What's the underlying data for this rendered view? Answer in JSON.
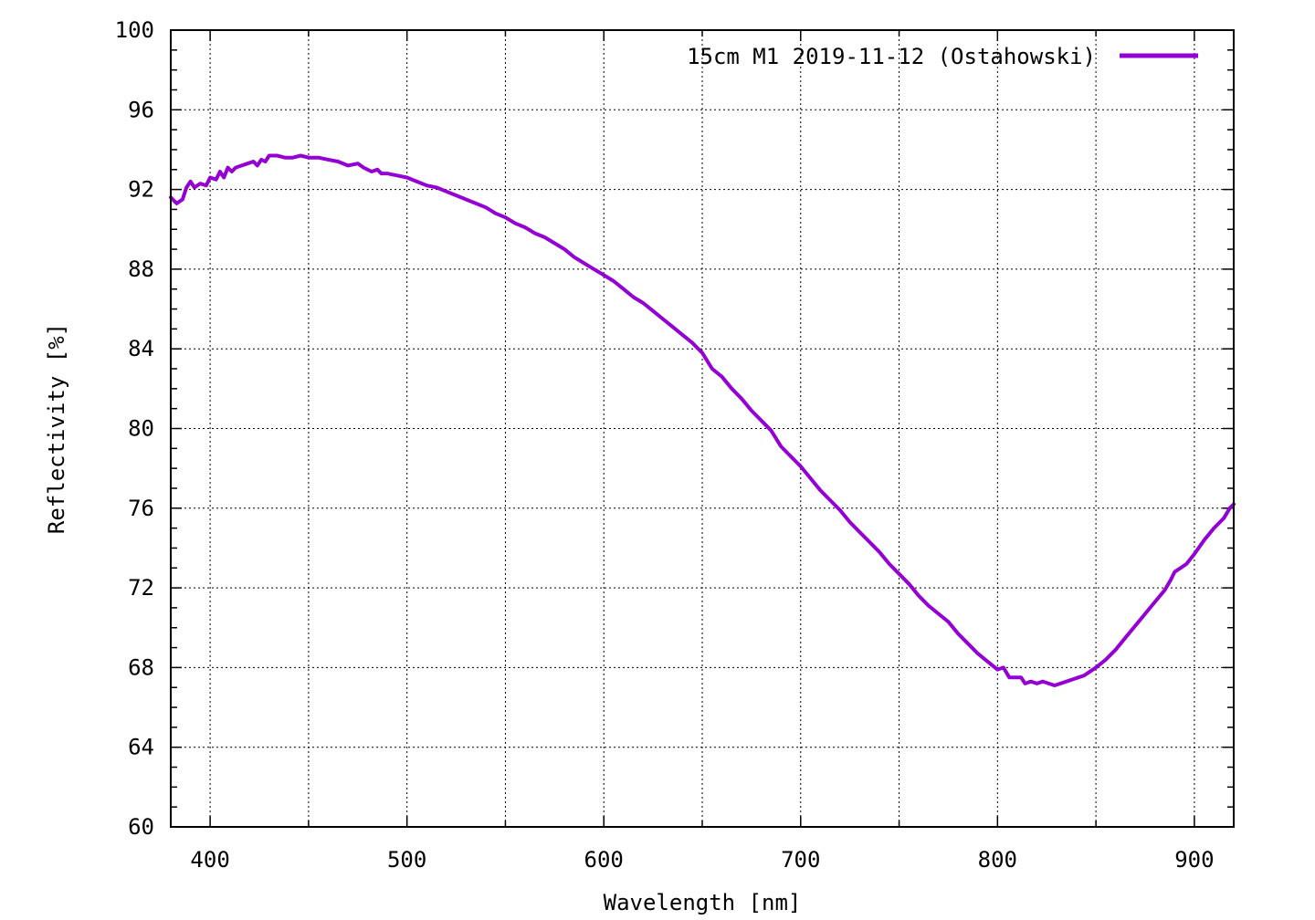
{
  "chart_data": {
    "type": "line",
    "title": "",
    "xlabel": "Wavelength [nm]",
    "ylabel": "Reflectivity [%]",
    "xlim": [
      380,
      920
    ],
    "ylim": [
      60,
      100
    ],
    "x_major_ticks": [
      400,
      500,
      600,
      700,
      800,
      900
    ],
    "x_tick_labels": [
      "400",
      "500",
      "600",
      "700",
      "800",
      "900"
    ],
    "y_major_ticks": [
      60,
      64,
      68,
      72,
      76,
      80,
      84,
      88,
      92,
      96,
      100
    ],
    "y_tick_labels": [
      "60",
      "64",
      "68",
      "72",
      "76",
      "80",
      "84",
      "88",
      "92",
      "96",
      "100"
    ],
    "grid": true,
    "legend_position": "top-right",
    "series": [
      {
        "name": "15cm M1 2019-11-12 (Ostahowski)",
        "color": "#9400d3",
        "points": [
          [
            380,
            91.6
          ],
          [
            383,
            91.3
          ],
          [
            386,
            91.5
          ],
          [
            388,
            92.1
          ],
          [
            390,
            92.4
          ],
          [
            392,
            92.1
          ],
          [
            395,
            92.3
          ],
          [
            398,
            92.2
          ],
          [
            400,
            92.6
          ],
          [
            403,
            92.5
          ],
          [
            405,
            92.9
          ],
          [
            407,
            92.6
          ],
          [
            409,
            93.1
          ],
          [
            411,
            92.9
          ],
          [
            413,
            93.1
          ],
          [
            416,
            93.2
          ],
          [
            419,
            93.3
          ],
          [
            422,
            93.4
          ],
          [
            424,
            93.2
          ],
          [
            426,
            93.5
          ],
          [
            428,
            93.4
          ],
          [
            430,
            93.7
          ],
          [
            434,
            93.7
          ],
          [
            438,
            93.6
          ],
          [
            442,
            93.6
          ],
          [
            446,
            93.7
          ],
          [
            450,
            93.6
          ],
          [
            455,
            93.6
          ],
          [
            460,
            93.5
          ],
          [
            465,
            93.4
          ],
          [
            470,
            93.2
          ],
          [
            475,
            93.3
          ],
          [
            478,
            93.1
          ],
          [
            482,
            92.9
          ],
          [
            485,
            93.0
          ],
          [
            487,
            92.8
          ],
          [
            490,
            92.8
          ],
          [
            495,
            92.7
          ],
          [
            500,
            92.6
          ],
          [
            505,
            92.4
          ],
          [
            510,
            92.2
          ],
          [
            515,
            92.1
          ],
          [
            520,
            91.9
          ],
          [
            525,
            91.7
          ],
          [
            530,
            91.5
          ],
          [
            535,
            91.3
          ],
          [
            540,
            91.1
          ],
          [
            545,
            90.8
          ],
          [
            550,
            90.6
          ],
          [
            555,
            90.3
          ],
          [
            560,
            90.1
          ],
          [
            565,
            89.8
          ],
          [
            570,
            89.6
          ],
          [
            575,
            89.3
          ],
          [
            580,
            89.0
          ],
          [
            585,
            88.6
          ],
          [
            590,
            88.3
          ],
          [
            595,
            88.0
          ],
          [
            600,
            87.7
          ],
          [
            605,
            87.4
          ],
          [
            610,
            87.0
          ],
          [
            615,
            86.6
          ],
          [
            620,
            86.3
          ],
          [
            625,
            85.9
          ],
          [
            630,
            85.5
          ],
          [
            635,
            85.1
          ],
          [
            640,
            84.7
          ],
          [
            645,
            84.3
          ],
          [
            650,
            83.8
          ],
          [
            655,
            83.0
          ],
          [
            660,
            82.6
          ],
          [
            665,
            82.0
          ],
          [
            670,
            81.5
          ],
          [
            675,
            80.9
          ],
          [
            680,
            80.4
          ],
          [
            685,
            79.9
          ],
          [
            690,
            79.1
          ],
          [
            695,
            78.6
          ],
          [
            700,
            78.1
          ],
          [
            705,
            77.5
          ],
          [
            710,
            76.9
          ],
          [
            715,
            76.4
          ],
          [
            720,
            75.9
          ],
          [
            725,
            75.3
          ],
          [
            730,
            74.8
          ],
          [
            735,
            74.3
          ],
          [
            740,
            73.8
          ],
          [
            745,
            73.2
          ],
          [
            750,
            72.7
          ],
          [
            755,
            72.2
          ],
          [
            760,
            71.6
          ],
          [
            765,
            71.1
          ],
          [
            770,
            70.7
          ],
          [
            775,
            70.3
          ],
          [
            780,
            69.7
          ],
          [
            785,
            69.2
          ],
          [
            790,
            68.7
          ],
          [
            795,
            68.3
          ],
          [
            800,
            67.9
          ],
          [
            803,
            68.0
          ],
          [
            806,
            67.5
          ],
          [
            809,
            67.5
          ],
          [
            812,
            67.5
          ],
          [
            814,
            67.2
          ],
          [
            817,
            67.3
          ],
          [
            820,
            67.2
          ],
          [
            823,
            67.3
          ],
          [
            826,
            67.2
          ],
          [
            829,
            67.1
          ],
          [
            832,
            67.2
          ],
          [
            835,
            67.3
          ],
          [
            838,
            67.4
          ],
          [
            841,
            67.5
          ],
          [
            844,
            67.6
          ],
          [
            847,
            67.8
          ],
          [
            850,
            68.0
          ],
          [
            855,
            68.4
          ],
          [
            860,
            68.9
          ],
          [
            865,
            69.5
          ],
          [
            870,
            70.1
          ],
          [
            875,
            70.7
          ],
          [
            880,
            71.3
          ],
          [
            885,
            71.9
          ],
          [
            888,
            72.4
          ],
          [
            890,
            72.8
          ],
          [
            893,
            73.0
          ],
          [
            896,
            73.2
          ],
          [
            900,
            73.7
          ],
          [
            905,
            74.4
          ],
          [
            910,
            75.0
          ],
          [
            915,
            75.5
          ],
          [
            918,
            76.0
          ],
          [
            920,
            76.2
          ]
        ]
      }
    ]
  }
}
